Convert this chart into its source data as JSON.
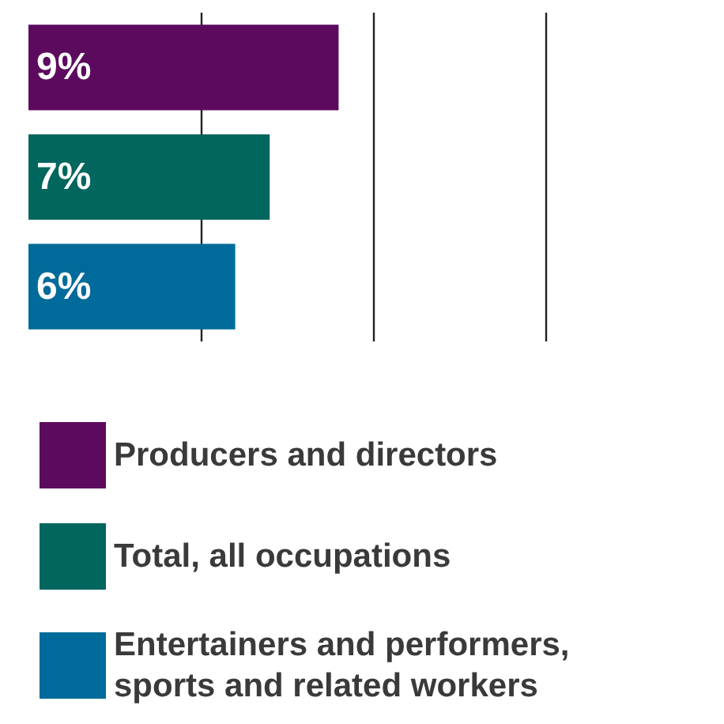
{
  "chart_data": {
    "type": "bar",
    "orientation": "horizontal",
    "categories": [
      null,
      null,
      null
    ],
    "series": [
      {
        "name": "Producers and directors",
        "color": "#5c0a5e",
        "values": [
          9,
          null,
          null
        ],
        "value_labels": [
          "9%",
          null,
          null
        ]
      },
      {
        "name": "Total, all occupations",
        "color": "#00665e",
        "values": [
          null,
          7,
          null
        ],
        "value_labels": [
          null,
          "7%",
          null
        ]
      },
      {
        "name": "Entertainers and performers, sports and related workers",
        "color": "#006b9a",
        "values": [
          null,
          null,
          6
        ],
        "value_labels": [
          null,
          null,
          "6%"
        ]
      }
    ],
    "ref_lines": [
      {
        "axis": "x",
        "value": 5
      },
      {
        "axis": "x",
        "value": 10
      },
      {
        "axis": "x",
        "value": 15
      }
    ],
    "stacked": true,
    "legend": "bottom"
  }
}
